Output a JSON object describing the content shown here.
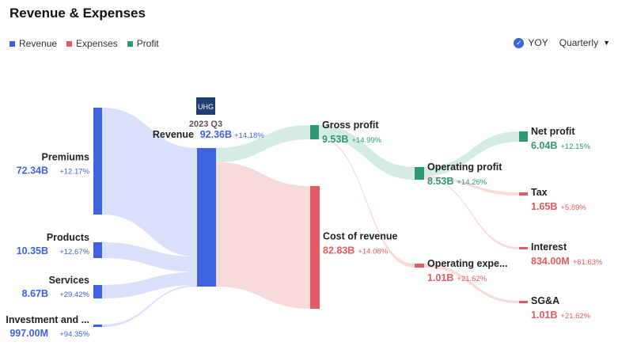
{
  "title": "Revenue & Expenses",
  "legend": [
    {
      "label": "Revenue",
      "color": "#3d63e0"
    },
    {
      "label": "Expenses",
      "color": "#e05c62"
    },
    {
      "label": "Profit",
      "color": "#2e9a74"
    }
  ],
  "controls": {
    "yoy_label": "YOY",
    "yoy_checked": true,
    "period_label": "Quarterly"
  },
  "logo_text": "UHG",
  "period": "2023 Q3",
  "chart_data": {
    "type": "sankey",
    "title": "Revenue & Expenses",
    "colors": {
      "revenue": "#3d63e0",
      "expense": "#e05c62",
      "profit": "#2e9a74"
    },
    "nodes": [
      {
        "id": "premiums",
        "label": "Premiums",
        "value": "72.34B",
        "change": "+12.17%",
        "category": "revenue"
      },
      {
        "id": "products",
        "label": "Products",
        "value": "10.35B",
        "change": "+12.67%",
        "category": "revenue"
      },
      {
        "id": "services",
        "label": "Services",
        "value": "8.67B",
        "change": "+29.42%",
        "category": "revenue"
      },
      {
        "id": "investment",
        "label": "Investment and ...",
        "value": "997.00M",
        "change": "+94.35%",
        "category": "revenue"
      },
      {
        "id": "revenue",
        "label": "Revenue",
        "value": "92.36B",
        "change": "+14.18%",
        "category": "revenue"
      },
      {
        "id": "gross_profit",
        "label": "Gross profit",
        "value": "9.53B",
        "change": "+14.99%",
        "category": "profit"
      },
      {
        "id": "cost_of_revenue",
        "label": "Cost of revenue",
        "value": "82.83B",
        "change": "+14.08%",
        "category": "expense"
      },
      {
        "id": "operating_profit",
        "label": "Operating profit",
        "value": "8.53B",
        "change": "+14.26%",
        "category": "profit"
      },
      {
        "id": "operating_expenses",
        "label": "Operating expe...",
        "value": "1.01B",
        "change": "+21.62%",
        "category": "expense"
      },
      {
        "id": "net_profit",
        "label": "Net profit",
        "value": "6.04B",
        "change": "+12.15%",
        "category": "profit"
      },
      {
        "id": "tax",
        "label": "Tax",
        "value": "1.65B",
        "change": "+5.89%",
        "category": "expense"
      },
      {
        "id": "interest",
        "label": "Interest",
        "value": "834.00M",
        "change": "+61.63%",
        "category": "expense"
      },
      {
        "id": "sga",
        "label": "SG&A",
        "value": "1.01B",
        "change": "+21.62%",
        "category": "expense"
      }
    ],
    "links": [
      {
        "source": "premiums",
        "target": "revenue",
        "value": 72.34
      },
      {
        "source": "products",
        "target": "revenue",
        "value": 10.35
      },
      {
        "source": "services",
        "target": "revenue",
        "value": 8.67
      },
      {
        "source": "investment",
        "target": "revenue",
        "value": 0.997
      },
      {
        "source": "revenue",
        "target": "gross_profit",
        "value": 9.53
      },
      {
        "source": "revenue",
        "target": "cost_of_revenue",
        "value": 82.83
      },
      {
        "source": "gross_profit",
        "target": "operating_profit",
        "value": 8.53
      },
      {
        "source": "gross_profit",
        "target": "operating_expenses",
        "value": 1.01
      },
      {
        "source": "operating_profit",
        "target": "net_profit",
        "value": 6.04
      },
      {
        "source": "operating_profit",
        "target": "tax",
        "value": 1.65
      },
      {
        "source": "operating_profit",
        "target": "interest",
        "value": 0.834
      },
      {
        "source": "operating_expenses",
        "target": "sga",
        "value": 1.01
      }
    ]
  }
}
